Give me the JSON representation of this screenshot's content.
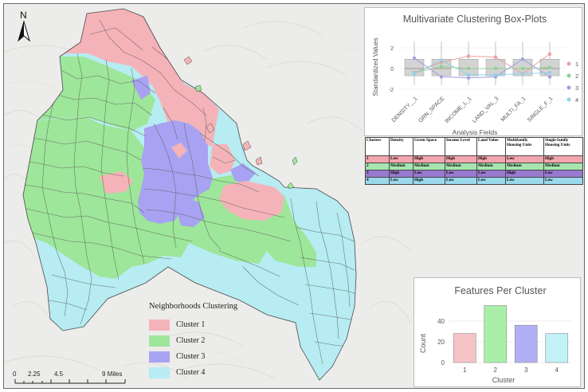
{
  "map": {
    "north_label": "N",
    "scale_bar": {
      "ticks": [
        "0",
        "2.25",
        "4.5",
        "9 Miles"
      ]
    },
    "legend": {
      "title": "Neighborhoods Clustering",
      "items": [
        {
          "label": "Cluster 1",
          "color": "#f4b3b8"
        },
        {
          "label": "Cluster 2",
          "color": "#9ee69a"
        },
        {
          "label": "Cluster 3",
          "color": "#a7a3f2"
        },
        {
          "label": "Cluster 4",
          "color": "#b6ecf2"
        }
      ]
    }
  },
  "boxplot": {
    "title": "Multivariate Clustering Box-Plots",
    "ylabel": "Standardized Values",
    "xlabel": "Analysis Fields",
    "yticks": [
      "2",
      "0",
      "-2"
    ],
    "fields": [
      "DENSITY__1",
      "GRN_SPACE",
      "INCOME_L_1",
      "LAND_VAL_3",
      "MULTI_FA_1",
      "SINGLE_F_1"
    ],
    "legend": [
      "1",
      "2",
      "3",
      "4"
    ],
    "series_colors": [
      "#e8a0a0",
      "#8fd08f",
      "#9f9fe6",
      "#8fd3e8"
    ]
  },
  "table": {
    "headers": [
      "Clusters",
      "Density",
      "Green Space",
      "Income Level",
      "Land Value",
      "Multifamily Housing Units",
      "Single-family Housing Units"
    ],
    "rows": [
      [
        "1",
        "Low",
        "High",
        "High",
        "High",
        "Low",
        "High"
      ],
      [
        "2",
        "Medium",
        "Medium",
        "Medium",
        "Medium",
        "Medium",
        "Medium"
      ],
      [
        "3",
        "High",
        "Low",
        "Low",
        "Low",
        "High",
        "Low"
      ],
      [
        "4",
        "Low",
        "High",
        "Low",
        "Low",
        "Low",
        "Low"
      ]
    ]
  },
  "chart_data": {
    "type": "bar",
    "title": "Features Per Cluster",
    "xlabel": "Cluster",
    "ylabel": "Count",
    "categories": [
      "1",
      "2",
      "3",
      "4"
    ],
    "values": [
      28,
      55,
      36,
      28
    ],
    "ylim": [
      0,
      60
    ],
    "yticks": [
      0,
      20,
      40
    ],
    "colors": [
      "#f6c3c7",
      "#a9efa9",
      "#b2b0f5",
      "#c2f1f6"
    ]
  }
}
